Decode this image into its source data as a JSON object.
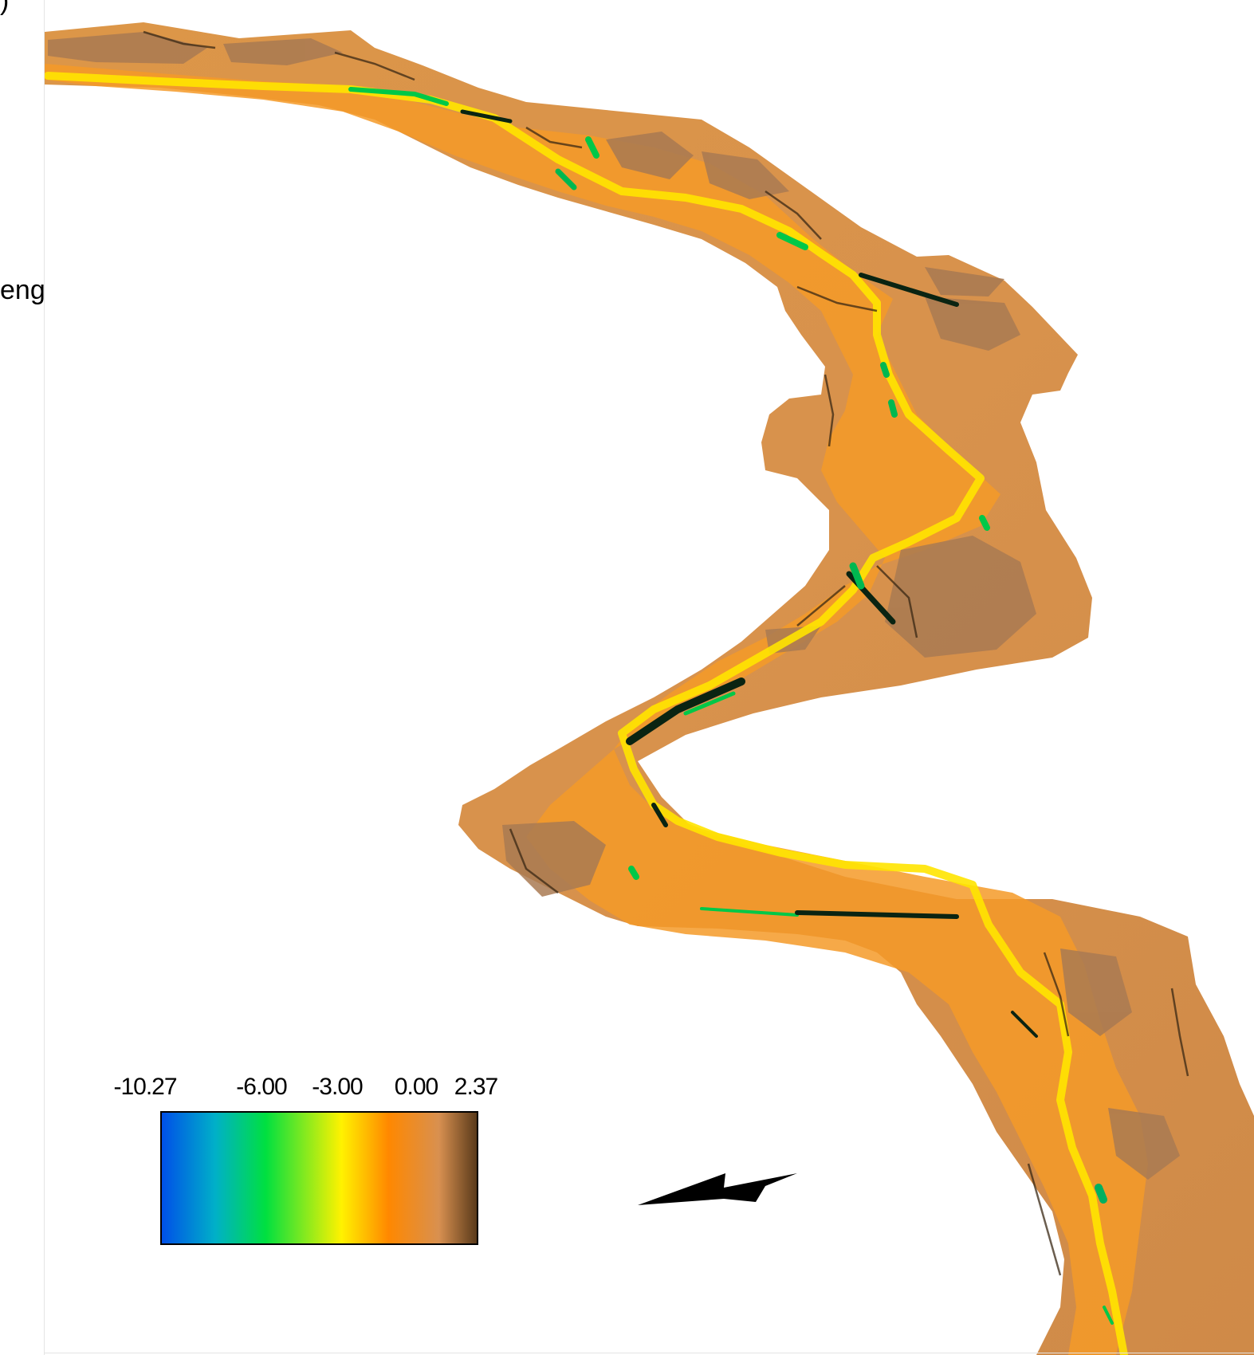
{
  "edge_fragments": {
    "top": ")",
    "left": "eng"
  },
  "legend": {
    "ticks": [
      {
        "label": "-10.27",
        "value": -10.27
      },
      {
        "label": "-6.00",
        "value": -6.0
      },
      {
        "label": "-3.00",
        "value": -3.0
      },
      {
        "label": "0.00",
        "value": 0.0
      },
      {
        "label": "2.37",
        "value": 2.37
      }
    ],
    "min": -10.27,
    "max": 2.37,
    "colors": [
      "#0050e8",
      "#00b0c8",
      "#00e040",
      "#fff200",
      "#ff8800",
      "#d89050",
      "#5a3a1a"
    ]
  },
  "map_colors": {
    "bank": "#d8944a",
    "bank_dark": "#a87850",
    "channel": "#ff9a1a",
    "shallow": "#ffe800",
    "mid": "#00c840",
    "deep": "#102010"
  },
  "north_arrow": "north-arrow-icon"
}
